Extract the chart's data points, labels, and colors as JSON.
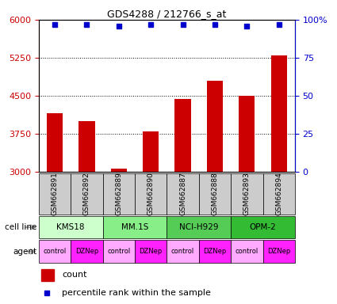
{
  "title": "GDS4288 / 212766_s_at",
  "samples": [
    "GSM662891",
    "GSM662892",
    "GSM662889",
    "GSM662890",
    "GSM662887",
    "GSM662888",
    "GSM662893",
    "GSM662894"
  ],
  "bar_values": [
    4150,
    4000,
    3060,
    3800,
    4430,
    4800,
    4500,
    5300
  ],
  "percentile_values": [
    97,
    97,
    96,
    97,
    97,
    97,
    96,
    97
  ],
  "bar_color": "#cc0000",
  "dot_color": "#0000cc",
  "ylim_left": [
    3000,
    6000
  ],
  "ylim_right": [
    0,
    100
  ],
  "yticks_left": [
    3000,
    3750,
    4500,
    5250,
    6000
  ],
  "yticks_right": [
    0,
    25,
    50,
    75,
    100
  ],
  "cell_line_data": [
    {
      "label": "KMS18",
      "start": 0,
      "end": 2,
      "color": "#ccffcc"
    },
    {
      "label": "MM.1S",
      "start": 2,
      "end": 4,
      "color": "#88ee88"
    },
    {
      "label": "NCI-H929",
      "start": 4,
      "end": 6,
      "color": "#55cc55"
    },
    {
      "label": "OPM-2",
      "start": 6,
      "end": 8,
      "color": "#33bb33"
    }
  ],
  "agents": [
    "control",
    "DZNep",
    "control",
    "DZNep",
    "control",
    "DZNep",
    "control",
    "DZNep"
  ],
  "agent_colors": {
    "control": "#ffaaff",
    "DZNep": "#ff22ff"
  },
  "label_color_left": "#cc0000",
  "label_color_right": "#0000cc",
  "sample_box_color": "#cccccc",
  "bg_color": "#ffffff",
  "arrow_color": "#999999"
}
